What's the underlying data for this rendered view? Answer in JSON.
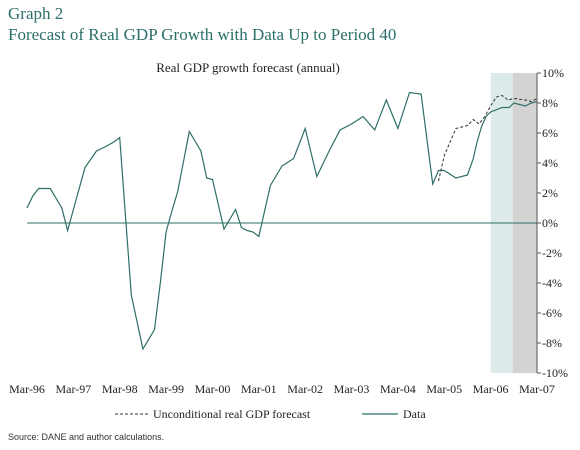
{
  "header": {
    "graph_label": "Graph 2",
    "title": "Forecast of Real GDP Growth with Data Up to Period 40"
  },
  "source": "Source: DANE and author calculations.",
  "chart_data": {
    "type": "line",
    "title": "Real GDP growth forecast (annual)",
    "xlabel": "",
    "ylabel": "",
    "x_ticks": [
      "Mar-96",
      "Mar-97",
      "Mar-98",
      "Mar-99",
      "Mar-00",
      "Mar-01",
      "Mar-02",
      "Mar-03",
      "Mar-04",
      "Mar-05",
      "Mar-06",
      "Mar-07"
    ],
    "y_ticks": [
      "10%",
      "8%",
      "6%",
      "4%",
      "2%",
      "0%",
      "-2%",
      "-4%",
      "-6%",
      "-8%",
      "-10%"
    ],
    "ylim": [
      -10,
      10
    ],
    "xlim": [
      0,
      44
    ],
    "y_axis_side": "right",
    "grid": false,
    "zero_line": true,
    "legend_position": "bottom",
    "shaded_regions": [
      {
        "from": 40,
        "to": 41.9,
        "color": "#dceaea"
      },
      {
        "from": 41.9,
        "to": 44,
        "color": "#d3d3d3"
      }
    ],
    "colors": {
      "data": "#2e6e68",
      "forecast": "#333333"
    },
    "series": [
      {
        "name": "Data",
        "style": "solid",
        "x": [
          0,
          0.5,
          1,
          2,
          3,
          3.5,
          4,
          5,
          6,
          6.8,
          7.5,
          8,
          9,
          10,
          11,
          11.5,
          12,
          12.5,
          13,
          14,
          15,
          15.5,
          16,
          17,
          18,
          18.5,
          19,
          19.5,
          20,
          21,
          22,
          23,
          24,
          25,
          26,
          27,
          28,
          29,
          30,
          31,
          32,
          33,
          34,
          35,
          35.5,
          36,
          37,
          38,
          38.5,
          38.8,
          39.2,
          39.6,
          40,
          41,
          41.6,
          42,
          43,
          43.5,
          44
        ],
        "y": [
          1,
          1.8,
          2.3,
          2.3,
          1,
          -0.5,
          0.9,
          3.7,
          4.8,
          5.1,
          5.4,
          5.7,
          -4.8,
          -8.4,
          -7.1,
          -4,
          -0.6,
          0.8,
          2.1,
          6.1,
          4.8,
          3,
          2.9,
          -0.4,
          0.9,
          -0.3,
          -0.5,
          -0.6,
          -0.9,
          2.5,
          3.8,
          4.3,
          6.3,
          3.1,
          4.7,
          6.2,
          6.6,
          7.1,
          6.2,
          8.2,
          6.3,
          8.7,
          8.6,
          2.6,
          3.5,
          3.5,
          3,
          3.2,
          4.3,
          5.3,
          6.4,
          7.1,
          7.4,
          7.7,
          7.7,
          8,
          7.8,
          8,
          8.1
        ]
      },
      {
        "name": "Unconditional real GDP forecast",
        "style": "dashed",
        "x": [
          35.5,
          36,
          37,
          38,
          38.5,
          39,
          39.5,
          40,
          40.5,
          41,
          41.5,
          42,
          43,
          43.5,
          44
        ],
        "y": [
          2.8,
          4.5,
          6.3,
          6.5,
          6.9,
          6.6,
          7.1,
          7.8,
          8.4,
          8.5,
          8.2,
          8.3,
          8.2,
          8.1,
          8.3
        ]
      }
    ]
  }
}
